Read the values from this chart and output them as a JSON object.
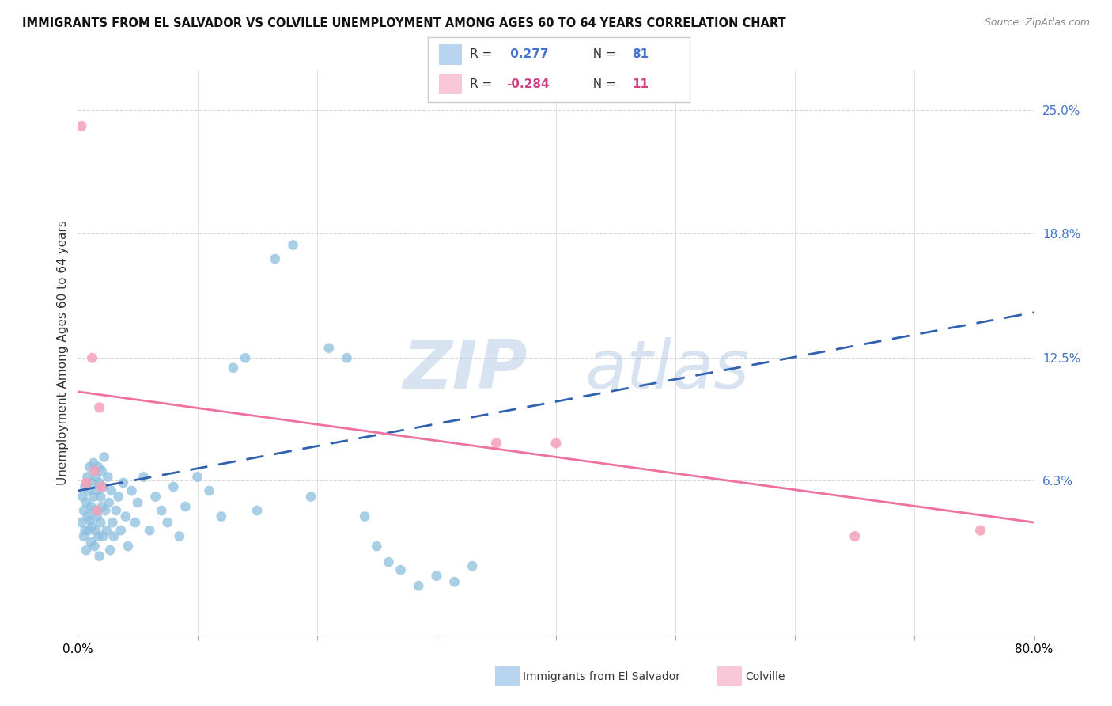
{
  "title": "IMMIGRANTS FROM EL SALVADOR VS COLVILLE UNEMPLOYMENT AMONG AGES 60 TO 64 YEARS CORRELATION CHART",
  "source": "Source: ZipAtlas.com",
  "ylabel": "Unemployment Among Ages 60 to 64 years",
  "x_min": 0.0,
  "x_max": 0.8,
  "y_min": -0.015,
  "y_max": 0.27,
  "y_tick_labels_right": [
    "25.0%",
    "18.8%",
    "12.5%",
    "6.3%"
  ],
  "y_tick_vals_right": [
    0.25,
    0.188,
    0.125,
    0.063
  ],
  "blue_r": "0.277",
  "blue_n": "81",
  "pink_r": "-0.284",
  "pink_n": "11",
  "blue_scatter_x": [
    0.003,
    0.004,
    0.005,
    0.005,
    0.006,
    0.006,
    0.007,
    0.007,
    0.008,
    0.008,
    0.009,
    0.009,
    0.01,
    0.01,
    0.011,
    0.011,
    0.012,
    0.012,
    0.013,
    0.013,
    0.014,
    0.014,
    0.015,
    0.015,
    0.016,
    0.016,
    0.017,
    0.017,
    0.018,
    0.018,
    0.019,
    0.019,
    0.02,
    0.02,
    0.021,
    0.021,
    0.022,
    0.023,
    0.024,
    0.025,
    0.026,
    0.027,
    0.028,
    0.029,
    0.03,
    0.032,
    0.034,
    0.036,
    0.038,
    0.04,
    0.042,
    0.045,
    0.048,
    0.05,
    0.055,
    0.06,
    0.065,
    0.07,
    0.075,
    0.08,
    0.085,
    0.09,
    0.1,
    0.11,
    0.12,
    0.13,
    0.14,
    0.15,
    0.165,
    0.18,
    0.195,
    0.21,
    0.225,
    0.24,
    0.25,
    0.26,
    0.27,
    0.285,
    0.3,
    0.315,
    0.33
  ],
  "blue_scatter_y": [
    0.042,
    0.055,
    0.048,
    0.035,
    0.06,
    0.038,
    0.052,
    0.028,
    0.045,
    0.065,
    0.038,
    0.058,
    0.043,
    0.07,
    0.05,
    0.032,
    0.062,
    0.04,
    0.055,
    0.072,
    0.048,
    0.03,
    0.065,
    0.038,
    0.058,
    0.045,
    0.07,
    0.035,
    0.062,
    0.025,
    0.055,
    0.042,
    0.068,
    0.05,
    0.035,
    0.06,
    0.075,
    0.048,
    0.038,
    0.065,
    0.052,
    0.028,
    0.058,
    0.042,
    0.035,
    0.048,
    0.055,
    0.038,
    0.062,
    0.045,
    0.03,
    0.058,
    0.042,
    0.052,
    0.065,
    0.038,
    0.055,
    0.048,
    0.042,
    0.06,
    0.035,
    0.05,
    0.065,
    0.058,
    0.045,
    0.12,
    0.125,
    0.048,
    0.175,
    0.182,
    0.055,
    0.13,
    0.125,
    0.045,
    0.03,
    0.022,
    0.018,
    0.01,
    0.015,
    0.012,
    0.02
  ],
  "pink_scatter_x": [
    0.003,
    0.007,
    0.012,
    0.014,
    0.016,
    0.018,
    0.02,
    0.35,
    0.4,
    0.65,
    0.755
  ],
  "pink_scatter_y": [
    0.242,
    0.062,
    0.125,
    0.068,
    0.048,
    0.1,
    0.06,
    0.082,
    0.082,
    0.035,
    0.038
  ],
  "blue_line_x": [
    0.0,
    0.8
  ],
  "blue_line_y": [
    0.058,
    0.148
  ],
  "pink_line_x": [
    0.0,
    0.8
  ],
  "pink_line_y": [
    0.108,
    0.042
  ],
  "watermark_zip": "ZIP",
  "watermark_atlas": "atlas",
  "background_color": "#ffffff",
  "scatter_blue_color": "#8dbfdf",
  "scatter_pink_color": "#f4a0b8",
  "line_blue_color": "#3060b0",
  "line_pink_color": "#f070a0",
  "grid_color": "#d8d8d8",
  "legend_blue_fill": "#b8d4ee",
  "legend_pink_fill": "#f8c8d8",
  "legend_text_color": "#4472c4",
  "legend_pink_text_color": "#cc4488"
}
